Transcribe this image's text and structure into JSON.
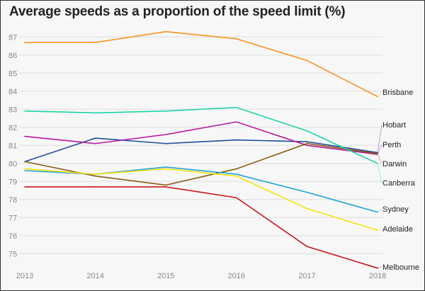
{
  "chart_data": {
    "type": "line",
    "title": "Average speeds as a proportion of the speed limit (%)",
    "xlabel": "",
    "ylabel": "",
    "x": [
      "2013",
      "2014",
      "2015",
      "2016",
      "2017",
      "2018"
    ],
    "y_ticks": [
      "75",
      "76",
      "77",
      "78",
      "79",
      "80",
      "81",
      "82",
      "83",
      "84",
      "85",
      "86",
      "87"
    ],
    "ylim": [
      74,
      87.6
    ],
    "grid": true,
    "legend": "direct labels at right end of lines",
    "series": [
      {
        "name": "Brisbane",
        "color": "#f7941d",
        "values": [
          86.7,
          86.7,
          87.3,
          86.9,
          85.7,
          83.7
        ]
      },
      {
        "name": "Hobart",
        "color": "#1f4e9c",
        "values": [
          80.1,
          81.4,
          81.1,
          81.3,
          81.2,
          80.6
        ]
      },
      {
        "name": "Perth",
        "color": "#b5179e",
        "values": [
          81.5,
          81.1,
          81.6,
          82.3,
          81.0,
          80.5
        ]
      },
      {
        "name": "Darwin",
        "color": "#8b5e10",
        "values": [
          80.1,
          79.3,
          78.8,
          79.7,
          81.1,
          80.55
        ]
      },
      {
        "name": "Canberra",
        "color": "#1dd3a7",
        "values": [
          82.9,
          82.8,
          82.9,
          83.1,
          81.8,
          80.0
        ]
      },
      {
        "name": "Sydney",
        "color": "#22a3d6",
        "values": [
          79.6,
          79.4,
          79.8,
          79.4,
          78.4,
          77.3
        ]
      },
      {
        "name": "Adelaide",
        "color": "#f5e20a",
        "values": [
          79.7,
          79.4,
          79.7,
          79.3,
          77.5,
          76.3
        ]
      },
      {
        "name": "Melbourne",
        "color": "#c8161d",
        "values": [
          78.7,
          78.7,
          78.7,
          78.1,
          75.4,
          74.2
        ]
      }
    ]
  }
}
